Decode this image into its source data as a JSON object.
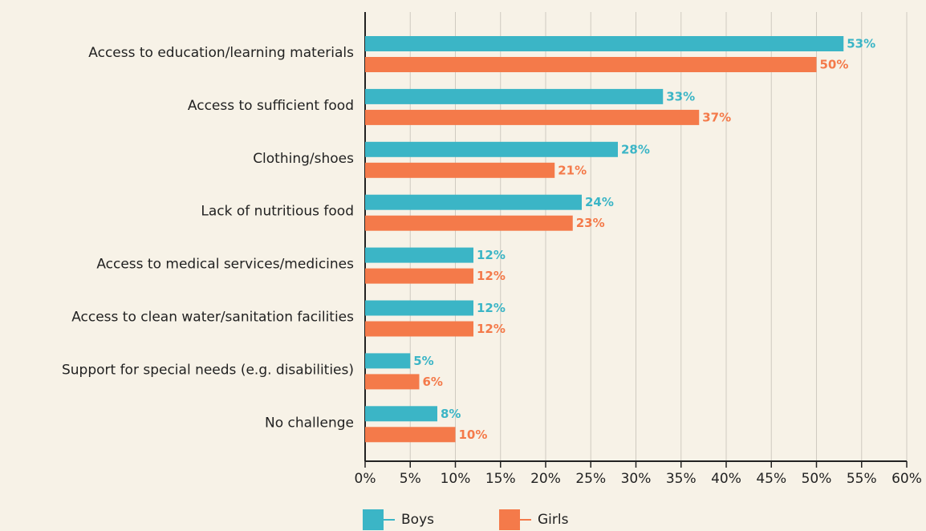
{
  "chart_data": {
    "type": "bar",
    "orientation": "horizontal",
    "categories": [
      "Access to education/learning materials",
      "Access to sufficient food",
      "Clothing/shoes",
      "Lack of nutritious food",
      "Access to medical services/medicines",
      "Access to clean water/sanitation facilities",
      "Support for special needs (e.g. disabilities)",
      "No challenge"
    ],
    "series": [
      {
        "name": "Boys",
        "color": "#3bb5c6",
        "values": [
          53,
          33,
          28,
          24,
          12,
          12,
          5,
          8
        ],
        "value_labels": [
          "53%",
          "33%",
          "28%",
          "24%",
          "12%",
          "12%",
          "5%",
          "8%"
        ]
      },
      {
        "name": "Girls",
        "color": "#f47a4a",
        "values": [
          50,
          37,
          21,
          23,
          12,
          12,
          6,
          10
        ],
        "value_labels": [
          "50%",
          "37%",
          "21%",
          "23%",
          "12%",
          "12%",
          "6%",
          "10%"
        ]
      }
    ],
    "xlim": [
      0,
      60
    ],
    "xticks": [
      {
        "value": 0,
        "label": "0%"
      },
      {
        "value": 5,
        "label": "5%"
      },
      {
        "value": 10,
        "label": "10%"
      },
      {
        "value": 15,
        "label": "15%"
      },
      {
        "value": 20,
        "label": "20%"
      },
      {
        "value": 25,
        "label": "25%"
      },
      {
        "value": 30,
        "label": "30%"
      },
      {
        "value": 35,
        "label": "35%"
      },
      {
        "value": 40,
        "label": "40%"
      },
      {
        "value": 45,
        "label": "45%"
      },
      {
        "value": 50,
        "label": "50%"
      },
      {
        "value": 55,
        "label": "55%"
      },
      {
        "value": 60,
        "label": "60%"
      }
    ],
    "grid": true,
    "legend": "bottom"
  }
}
